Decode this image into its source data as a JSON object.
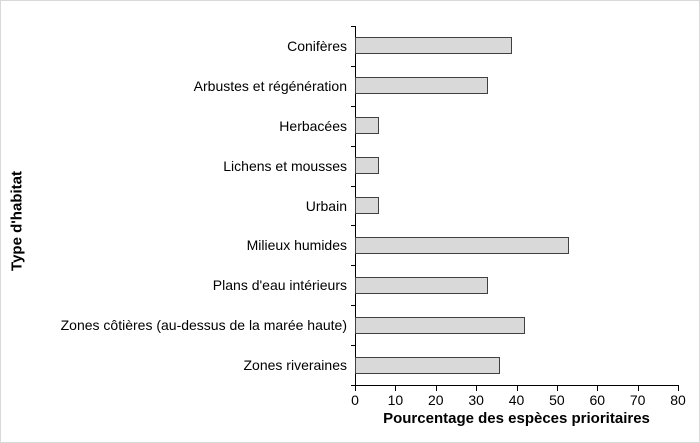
{
  "figure": {
    "background": "#ffffff",
    "border_color": "#d9d9d9"
  },
  "chart_data": {
    "type": "bar",
    "orientation": "horizontal",
    "title": "",
    "xlabel": "Pourcentage des espèces prioritaires",
    "ylabel": "Type d'habitat",
    "categories": [
      "Conifères",
      "Arbustes et régénération",
      "Herbacées",
      "Lichens et mousses",
      "Urbain",
      "Milieux humides",
      "Plans d'eau intérieurs",
      "Zones côtières (au-dessus de la marée haute)",
      "Zones riveraines"
    ],
    "values": [
      39,
      33,
      6,
      6,
      6,
      53,
      33,
      42,
      36
    ],
    "xlim": [
      0,
      80
    ],
    "xticks": [
      0,
      10,
      20,
      30,
      40,
      50,
      60,
      70,
      80
    ],
    "grid": false,
    "legend": null,
    "bar_fill": "#d9d9d9",
    "bar_border": "#404040",
    "axis_color": "#000000"
  }
}
